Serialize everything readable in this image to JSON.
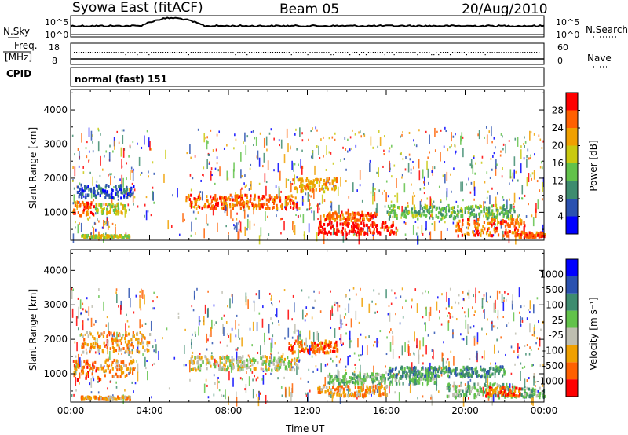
{
  "header": {
    "station": "Syowa East (fitACF)",
    "beam": "Beam 05",
    "date": "20/Aug/2010"
  },
  "top_panels": {
    "nsky_label": "N.Sky",
    "nsky_ticks": [
      "10^5",
      "10^0"
    ],
    "nsearch_label": "N.Search",
    "nsearch_ticks": [
      "10^5",
      "10^0"
    ],
    "freq_label_1": "Freq.",
    "freq_label_2": "[MHz]",
    "freq_ticks": [
      "18",
      "8"
    ],
    "nave_label": "Nave",
    "nave_ticks": [
      "60",
      "0"
    ],
    "cpid_label": "CPID",
    "cpid_value": "normal (fast) 151"
  },
  "colors": {
    "power": [
      "#0000ff",
      "#2a51b0",
      "#3e8c6f",
      "#62c24a",
      "#c9c90f",
      "#f0a000",
      "#ff6000",
      "#ff0000"
    ],
    "velocity": [
      "#ff0000",
      "#ff6000",
      "#f0a000",
      "#bebeb0",
      "#62c24a",
      "#3e8c6f",
      "#2a51b0",
      "#0000ff"
    ]
  },
  "chart_data": [
    {
      "type": "heatmap",
      "name": "Power",
      "ylabel": "Slant Range [km]",
      "ylim": [
        180,
        4600
      ],
      "y_ticks": [
        "1000",
        "2000",
        "3000",
        "4000"
      ],
      "y_tick_values": [
        1000,
        2000,
        3000,
        4000
      ],
      "x_ticks": [
        "00:00",
        "04:00",
        "08:00",
        "12:00",
        "16:00",
        "20:00",
        "00:00"
      ],
      "xlim_hours": [
        0,
        24
      ],
      "colorbar_label": "Power [dB]",
      "colorbar_ticks": [
        "4",
        "8",
        "12",
        "16",
        "20",
        "24",
        "28"
      ],
      "colorbar_range": [
        0,
        30
      ],
      "bands": [
        {
          "t0": 0.1,
          "t1": 1.2,
          "r0": 900,
          "r1": 1300,
          "level": 6
        },
        {
          "t0": 1.2,
          "t1": 2.8,
          "r0": 950,
          "r1": 1250,
          "level": 4
        },
        {
          "t0": 0.3,
          "t1": 3.2,
          "r0": 1400,
          "r1": 1800,
          "level": 1
        },
        {
          "t0": 0.5,
          "t1": 3.0,
          "r0": 250,
          "r1": 320,
          "level": 4
        },
        {
          "t0": 5.8,
          "t1": 11.5,
          "r0": 1100,
          "r1": 1500,
          "level": 6
        },
        {
          "t0": 11.2,
          "t1": 13.5,
          "r0": 1600,
          "r1": 2000,
          "level": 5
        },
        {
          "t0": 12.5,
          "t1": 16.5,
          "r0": 350,
          "r1": 700,
          "level": 7
        },
        {
          "t0": 12.8,
          "t1": 15.5,
          "r0": 750,
          "r1": 1000,
          "level": 6
        },
        {
          "t0": 16.0,
          "t1": 22.5,
          "r0": 800,
          "r1": 1200,
          "level": 3
        },
        {
          "t0": 19.5,
          "t1": 23.0,
          "r0": 300,
          "r1": 800,
          "level": 6
        },
        {
          "t0": 22.5,
          "t1": 24.0,
          "r0": 250,
          "r1": 400,
          "level": 6
        }
      ]
    },
    {
      "type": "heatmap",
      "name": "Velocity",
      "ylabel": "Slant Range [km]",
      "ylim": [
        180,
        4600
      ],
      "y_ticks": [
        "1000",
        "2000",
        "3000",
        "4000"
      ],
      "y_tick_values": [
        1000,
        2000,
        3000,
        4000
      ],
      "x_ticks": [
        "00:00",
        "04:00",
        "08:00",
        "12:00",
        "16:00",
        "20:00",
        "00:00"
      ],
      "xlim_hours": [
        0,
        24
      ],
      "xlabel": "Time UT",
      "colorbar_label": "Velocity [m s⁻¹]",
      "colorbar_ticks": [
        "1000",
        "500",
        "100",
        "25",
        "-25",
        "-100",
        "-500",
        "-1000"
      ],
      "bands": [
        {
          "t0": 0.1,
          "t1": 1.5,
          "r0": 800,
          "r1": 1400,
          "level": 1
        },
        {
          "t0": 1.5,
          "t1": 3.2,
          "r0": 900,
          "r1": 1400,
          "level": 2
        },
        {
          "t0": 0.5,
          "t1": 3.0,
          "r0": 250,
          "r1": 330,
          "level": 2
        },
        {
          "t0": 0.5,
          "t1": 4.0,
          "r0": 1600,
          "r1": 2200,
          "level": 2
        },
        {
          "t0": 6.0,
          "t1": 11.5,
          "r0": 1100,
          "r1": 1500,
          "level": 3
        },
        {
          "t0": 11.0,
          "t1": 13.5,
          "r0": 1600,
          "r1": 1950,
          "level": 1
        },
        {
          "t0": 12.5,
          "t1": 16.0,
          "r0": 350,
          "r1": 650,
          "level": 2
        },
        {
          "t0": 13.0,
          "t1": 18.5,
          "r0": 700,
          "r1": 1000,
          "level": 4
        },
        {
          "t0": 16.0,
          "t1": 22.0,
          "r0": 900,
          "r1": 1200,
          "level": 5
        },
        {
          "t0": 19.0,
          "t1": 22.5,
          "r0": 300,
          "r1": 700,
          "level": 4
        },
        {
          "t0": 21.0,
          "t1": 22.8,
          "r0": 350,
          "r1": 600,
          "level": 1
        },
        {
          "t0": 22.8,
          "t1": 24.0,
          "r0": 300,
          "r1": 600,
          "level": 4
        }
      ]
    }
  ]
}
